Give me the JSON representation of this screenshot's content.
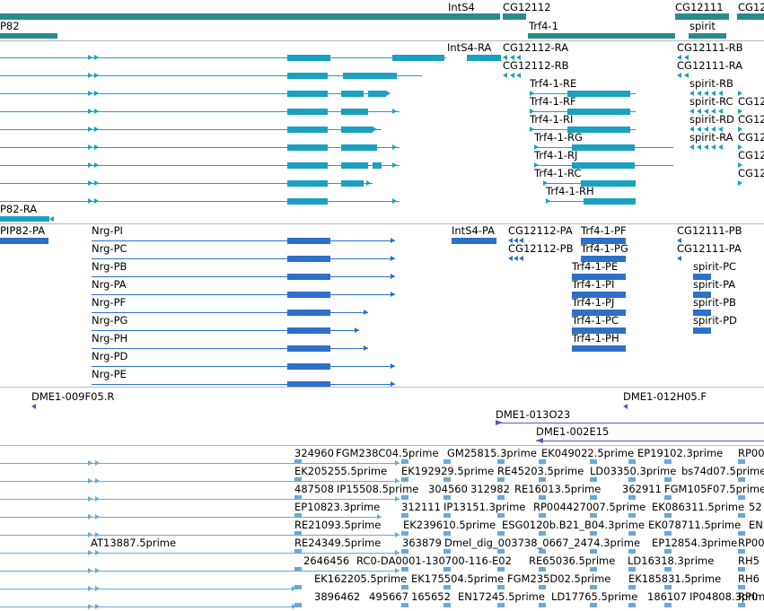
{
  "colors": {
    "gene": "#2a8a8a",
    "transcript": "#1aa0c0",
    "protein": "#2e6fc9",
    "clone": "#7050b0",
    "est": "#6aa8d8",
    "separator": "#b9b9b9"
  },
  "genes": {
    "labels": [
      "P82",
      "IntS4",
      "CG12112",
      "Trf4-1",
      "CG12111",
      "spirit",
      "CG12"
    ]
  },
  "transcripts": {
    "labels": [
      "IntS4-RA",
      "CG12112-RA",
      "CG12111-RB",
      "CG12112-RB",
      "CG12111-RA",
      "Trf4-1-RE",
      "spirit-RB",
      "Trf4-1-RF",
      "spirit-RC",
      "Trf4-1-RI",
      "spirit-RD",
      "Trf4-1-RG",
      "spirit-RA",
      "Trf4-1-RJ",
      "Trf4-1-RC",
      "Trf4-1-RH",
      "P82-RA",
      "CG12",
      "CG12",
      "CG12",
      "CG12",
      "CG12"
    ]
  },
  "proteins": {
    "labels": [
      "PIP82-PA",
      "Nrg-PI",
      "IntS4-PA",
      "CG12112-PA",
      "Trf4-1-PF",
      "CG12111-PB",
      "Nrg-PC",
      "CG12112-PB",
      "Trf4-1-PG",
      "CG12111-PA",
      "Nrg-PB",
      "Trf4-1-PE",
      "spirit-PC",
      "Nrg-PA",
      "Trf4-1-PI",
      "spirit-PA",
      "Nrg-PF",
      "Trf4-1-PJ",
      "spirit-PB",
      "Nrg-PG",
      "Trf4-1-PC",
      "spirit-PD",
      "Nrg-PH",
      "Trf4-1-PH",
      "Nrg-PD",
      "Nrg-PE"
    ]
  },
  "clones": {
    "labels": [
      "DME1-009F05.R",
      "DME1-012H05.F",
      "DME1-013O23",
      "DME1-002E15"
    ]
  },
  "ests": {
    "labels": [
      "324960",
      "FGM238C04.5prime",
      "GM25815.3prime",
      "EK049022.5prime",
      "EP19102.3prime",
      "RP00",
      "EK205255.5prime",
      "EK192929.5prime",
      "RE45203.5prime",
      "LD03350.3prime",
      "bs74d07.5prime",
      "487508",
      "IP15508.5prime",
      "304560",
      "312982",
      "RE16013.5prime",
      "362911",
      "FGM105F07.5prime",
      "EP10823.3prime",
      "312111",
      "IP13151.3prime",
      "RP004427007.5prime",
      "EK086311.5prime",
      "52",
      "RE21093.5prime",
      "EK239610.5prime",
      "ESG0120b.B21_B04.3prime",
      "EK078711.5prime",
      "EN",
      "AT13887.5prime",
      "RE24349.5prime",
      "363879",
      "Dmel_dig_003738_0667_2474.3prime",
      "EP12854.3prime",
      "RP00",
      "2646456",
      "RC0-DA0001-130700-116-E02",
      "RE65036.5prime",
      "LD16318.3prime",
      "RH5",
      "EK162205.5prime",
      "EK175504.5prime",
      "FGM235D02.5prime",
      "EK185831.5prime",
      "RH6",
      "3896462",
      "495667",
      "165652",
      "EN17245.5prime",
      "LD17765.5prime",
      "186107",
      "IP04808.3prime",
      "RP0"
    ]
  }
}
